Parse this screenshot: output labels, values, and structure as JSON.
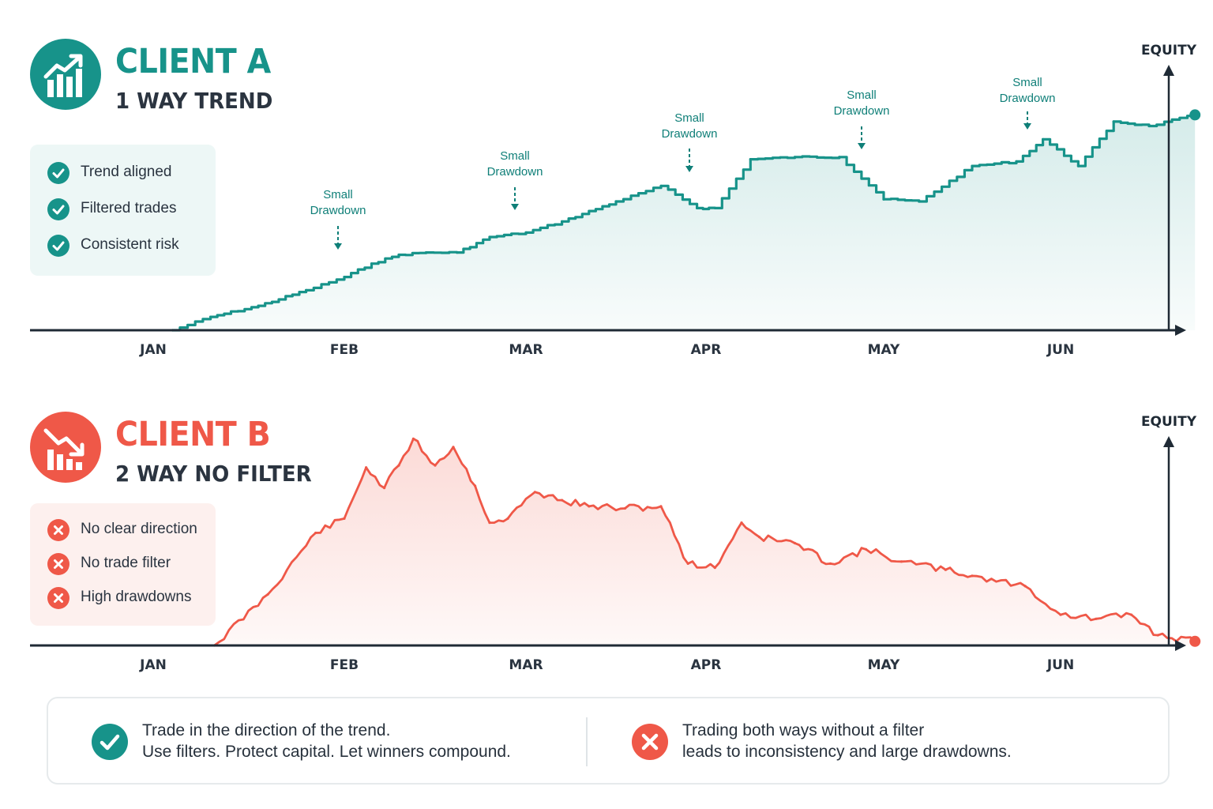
{
  "colors": {
    "teal": "#17938a",
    "teal_dark": "#0f7f78",
    "red": "#ef5848",
    "axis": "#1f2a35",
    "teal_box": "#edf7f6",
    "red_box": "#fdf0ee"
  },
  "client_a": {
    "title": "CLIENT A",
    "subtitle": "1 WAY TREND",
    "icon": "chart-trending-up-icon",
    "features": [
      {
        "icon": "check-icon",
        "label": "Trend aligned"
      },
      {
        "icon": "check-icon",
        "label": "Filtered trades"
      },
      {
        "icon": "check-icon",
        "label": "Consistent risk"
      }
    ]
  },
  "client_b": {
    "title": "CLIENT B",
    "subtitle": "2 WAY NO FILTER",
    "icon": "chart-trending-down-icon",
    "features": [
      {
        "icon": "x-icon",
        "label": "No clear direction"
      },
      {
        "icon": "x-icon",
        "label": "No trade filter"
      },
      {
        "icon": "x-icon",
        "label": "High drawdowns"
      }
    ]
  },
  "footer": {
    "good": {
      "icon": "check-icon",
      "line1": "Trade in the direction of the trend.",
      "line2": "Use filters. Protect capital. Let winners compound."
    },
    "bad": {
      "icon": "x-icon",
      "line1": "Trading both ways without a filter",
      "line2": "leads to inconsistency and large drawdowns."
    }
  },
  "chart_data": [
    {
      "type": "area",
      "title": "",
      "ylabel": "EQUITY",
      "xlabel": "",
      "categories": [
        "JAN",
        "FEB",
        "MAR",
        "APR",
        "MAY",
        "JUN"
      ],
      "ylim": [
        0,
        100
      ],
      "grid": false,
      "legend": "none",
      "y_ticks_shown": false,
      "series": [
        {
          "color": "#17938a",
          "x": [
            0.1,
            0.3,
            0.55,
            0.8,
            1.0,
            1.15,
            1.3,
            1.45,
            1.62,
            1.8,
            2.0,
            2.2,
            2.5,
            2.75,
            2.95,
            3.05,
            3.25,
            3.5,
            3.75,
            4.0,
            4.2,
            4.5,
            4.75,
            4.9,
            5.1,
            5.3,
            5.5,
            5.76
          ],
          "y": [
            0,
            6,
            11,
            18,
            24,
            30,
            34,
            35,
            35,
            42,
            44,
            49,
            58,
            65,
            55,
            55,
            77,
            78,
            78,
            59,
            58,
            74,
            76,
            86,
            74,
            94,
            92,
            97
          ]
        }
      ],
      "annotations": [
        {
          "text": "Small Drawdown"
        },
        {
          "text": "Small Drawdown"
        },
        {
          "text": "Small Drawdown"
        },
        {
          "text": "Small Drawdown"
        },
        {
          "text": "Small Drawdown"
        }
      ]
    },
    {
      "type": "area",
      "title": "",
      "ylabel": "EQUITY",
      "xlabel": "",
      "categories": [
        "JAN",
        "FEB",
        "MAR",
        "APR",
        "MAY",
        "JUN"
      ],
      "ylim": [
        0,
        100
      ],
      "grid": false,
      "legend": "none",
      "y_ticks_shown": false,
      "series": [
        {
          "color": "#ef5848",
          "x": [
            0.32,
            0.6,
            0.85,
            1.0,
            1.12,
            1.22,
            1.3,
            1.38,
            1.5,
            1.6,
            1.72,
            1.8,
            1.9,
            2.05,
            2.2,
            2.35,
            2.55,
            2.75,
            2.9,
            3.05,
            3.2,
            3.3,
            3.5,
            3.7,
            3.9,
            4.1,
            4.35,
            4.5,
            4.8,
            5.0,
            5.2,
            5.4,
            5.55,
            5.76
          ],
          "y": [
            0,
            25,
            55,
            62,
            87,
            77,
            88,
            101,
            88,
            97,
            78,
            60,
            62,
            75,
            71,
            68,
            67,
            68,
            40,
            38,
            60,
            53,
            50,
            40,
            47,
            41,
            37,
            34,
            29,
            15,
            13,
            15,
            5,
            2
          ]
        }
      ]
    }
  ]
}
